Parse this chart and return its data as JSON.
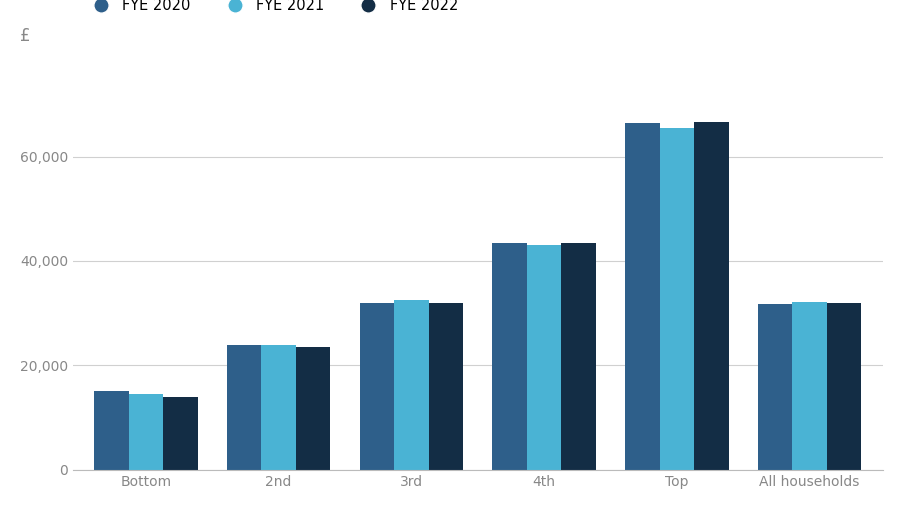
{
  "categories": [
    "Bottom",
    "2nd",
    "3rd",
    "4th",
    "Top",
    "All households"
  ],
  "series": [
    {
      "label": "FYE 2020",
      "color": "#2e5f8a",
      "values": [
        15100,
        24000,
        32000,
        43500,
        66500,
        31800
      ]
    },
    {
      "label": "FYE 2021",
      "color": "#4ab3d4",
      "values": [
        14500,
        24000,
        32500,
        43000,
        65500,
        32200
      ]
    },
    {
      "label": "FYE 2022",
      "color": "#132d45",
      "values": [
        13900,
        23500,
        32000,
        43500,
        66600,
        32000
      ]
    }
  ],
  "ylabel": "£",
  "ylim": [
    0,
    72000
  ],
  "yticks": [
    0,
    20000,
    40000,
    60000
  ],
  "background_color": "#ffffff",
  "grid_color": "#d0d0d0",
  "bar_width": 0.26,
  "legend_fontsize": 10.5,
  "tick_fontsize": 10,
  "tick_color": "#888888"
}
